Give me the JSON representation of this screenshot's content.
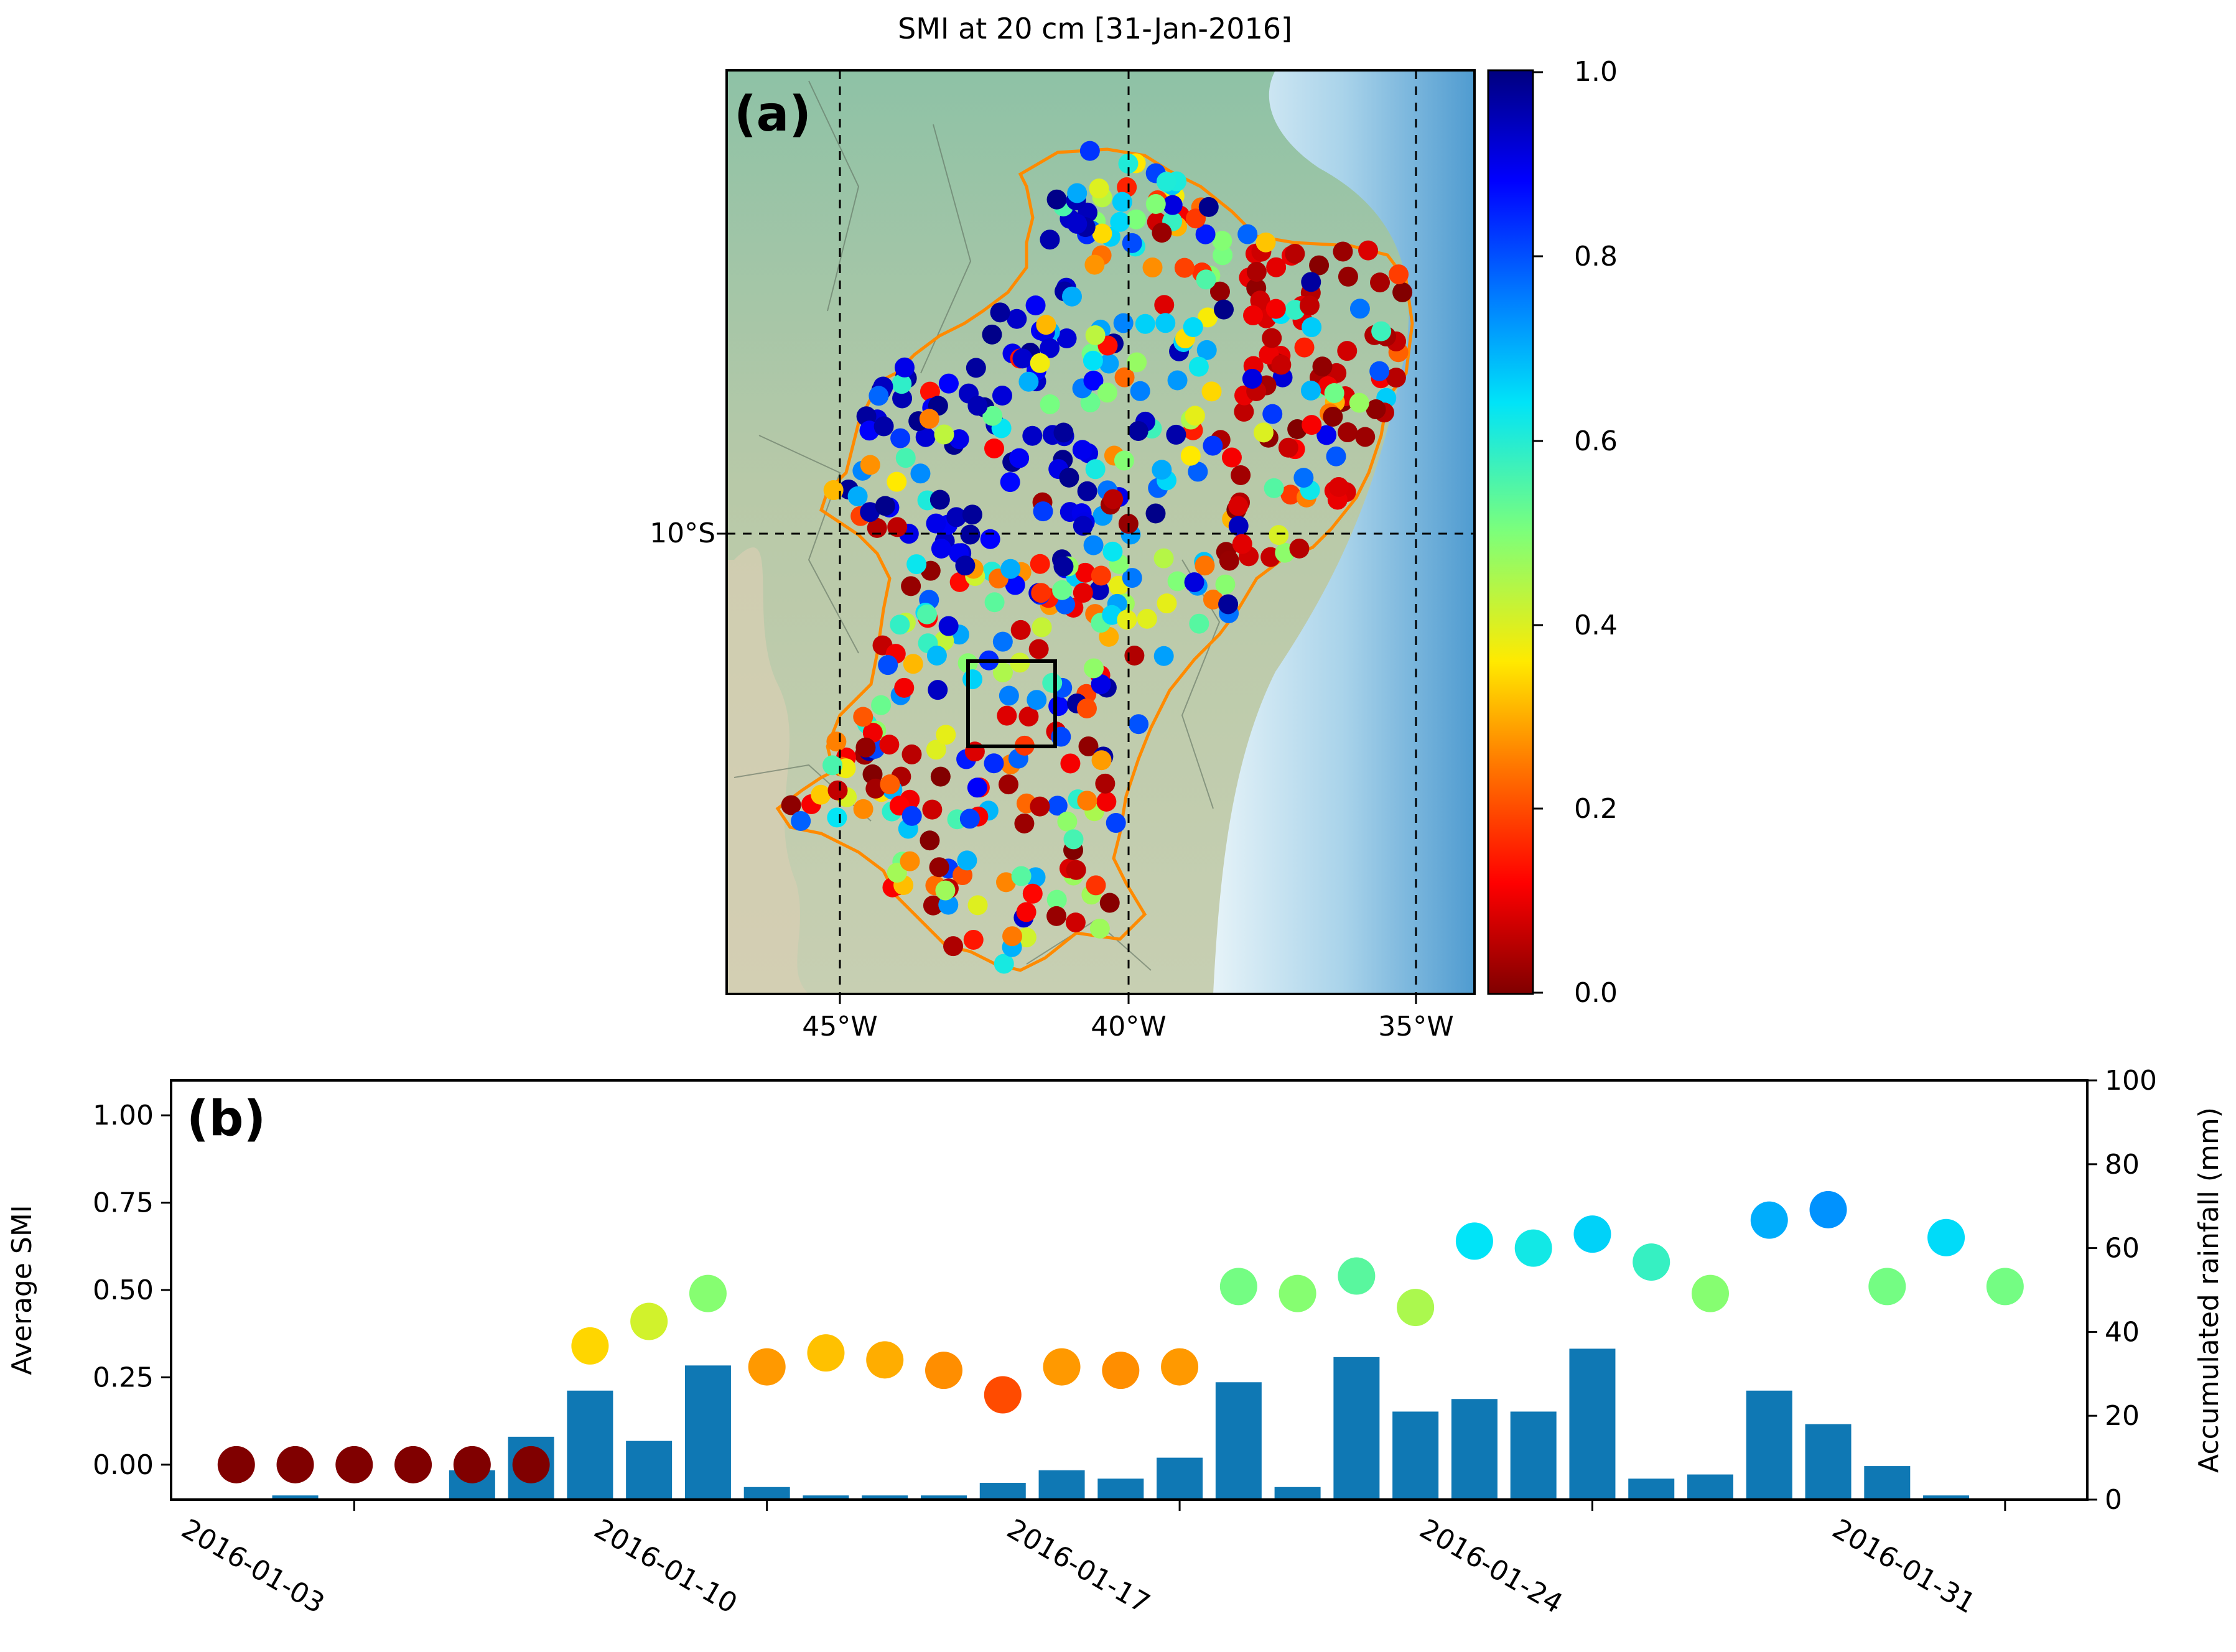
{
  "colors": {
    "bar": "#0f78b4",
    "state_border": "#ff8a00",
    "map_land": "#9fc2a3",
    "map_ocean": "#6aa8d2"
  },
  "map": {
    "panel_label": "(a)",
    "title": "SMI at 20 cm [31-Jan-2016]",
    "lat_ticks": [
      "10°S"
    ],
    "lon_ticks": [
      "45°W",
      "40°W",
      "35°W"
    ],
    "colorbar": {
      "ticks": [
        "1.0",
        "0.8",
        "0.6",
        "0.4",
        "0.2",
        "0.0"
      ],
      "range": [
        0,
        1
      ]
    }
  },
  "chart_data": {
    "type": "bar",
    "panel_label": "(b)",
    "ylabel_left": "Average SMI",
    "ylabel_right": "Accumulated rainfall (mm)",
    "left_ticks": [
      "1.00",
      "0.75",
      "0.50",
      "0.25",
      "0.00"
    ],
    "right_ticks": [
      "100",
      "80",
      "60",
      "40",
      "20",
      "0"
    ],
    "xtick_labels": [
      "2016-01-03",
      "2016-01-10",
      "2016-01-17",
      "2016-01-24",
      "2016-01-31"
    ],
    "xtick_days": [
      3,
      10,
      17,
      24,
      31
    ],
    "ylim_left": [
      -0.1,
      1.1
    ],
    "ylim_right": [
      0,
      100
    ],
    "days": [
      1,
      2,
      3,
      4,
      5,
      6,
      7,
      8,
      9,
      10,
      11,
      12,
      13,
      14,
      15,
      16,
      17,
      18,
      19,
      20,
      21,
      22,
      23,
      24,
      25,
      26,
      27,
      28,
      29,
      30,
      31
    ],
    "rainfall_mm": [
      0,
      1,
      0,
      0,
      7,
      15,
      26,
      14,
      32,
      3,
      1,
      1,
      1,
      4,
      7,
      5,
      10,
      28,
      3,
      34,
      21,
      24,
      21,
      36,
      5,
      6,
      26,
      18,
      8,
      1,
      0
    ],
    "avg_smi": [
      0.0,
      0.0,
      0.0,
      0.0,
      0.0,
      0.0,
      0.34,
      0.41,
      0.49,
      0.28,
      0.32,
      0.3,
      0.27,
      0.2,
      0.28,
      0.27,
      0.28,
      0.51,
      0.49,
      0.54,
      0.45,
      0.64,
      0.62,
      0.66,
      0.58,
      0.49,
      0.7,
      0.73,
      0.51,
      0.65,
      0.51
    ]
  }
}
